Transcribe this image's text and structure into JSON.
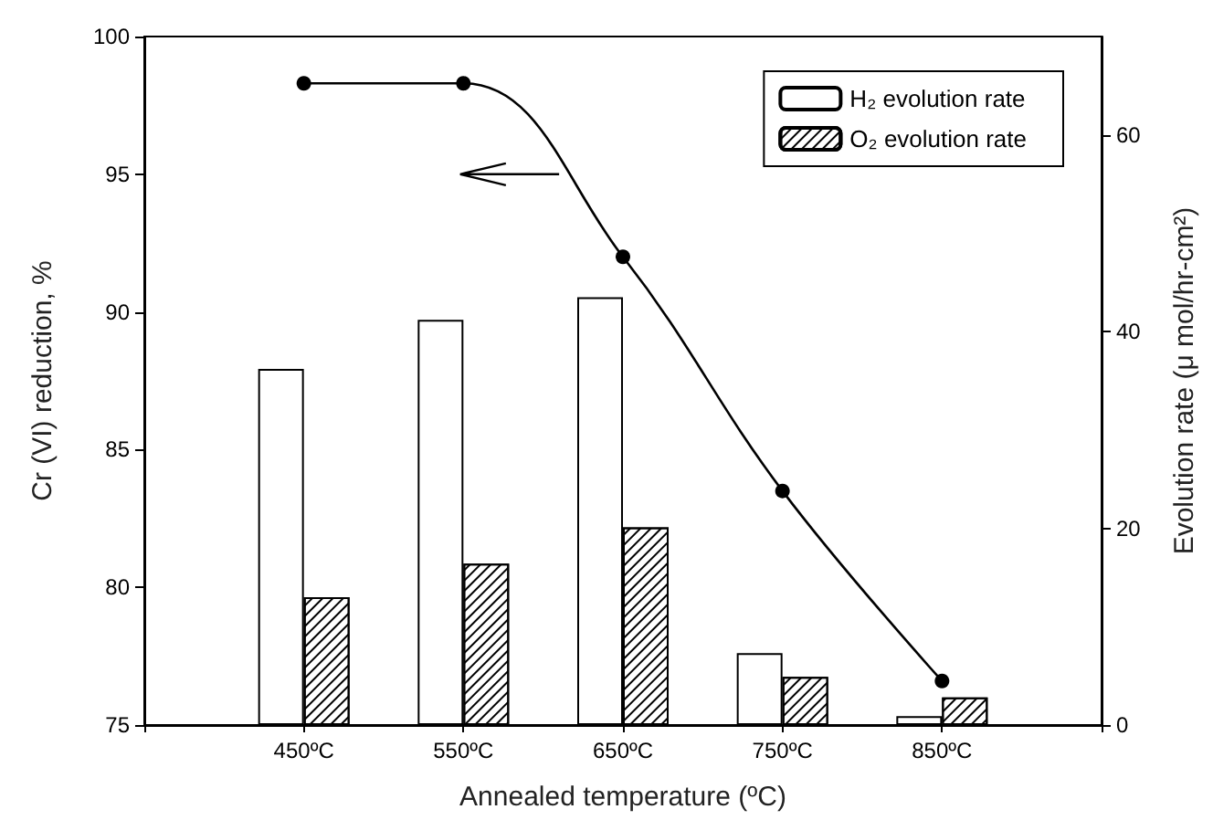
{
  "chart_data": {
    "type": "bar",
    "xlabel": "Annealed temperature (ºC)",
    "ylabel": "Cr (VI) reduction, %",
    "y2label": "Evolution rate (μ mol/hr-cm²)",
    "categories": [
      "450ºC",
      "550ºC",
      "650ºC",
      "750ºC",
      "850ºC"
    ],
    "series": [
      {
        "type": "line",
        "color": "#000000",
        "values": [
          98.3,
          98.3,
          92.0,
          83.5,
          76.6
        ]
      },
      {
        "name": "H₂ evolution rate",
        "color": "#ffffff",
        "axis": "y2",
        "values": [
          36.2,
          41.2,
          43.5,
          7.3,
          0.9
        ]
      },
      {
        "name": "O₂ evolution rate",
        "color": "#ffffff",
        "axis": "y2",
        "values": [
          13.0,
          16.4,
          20.1,
          4.9,
          2.8
        ]
      }
    ],
    "ylim": [
      75,
      100
    ],
    "yticks": [
      75,
      80,
      85,
      90,
      95,
      100
    ],
    "y2lim": [
      0,
      70
    ],
    "y2ticks": [
      0,
      20,
      40,
      60
    ],
    "legend": "top right",
    "marker": "circle"
  }
}
